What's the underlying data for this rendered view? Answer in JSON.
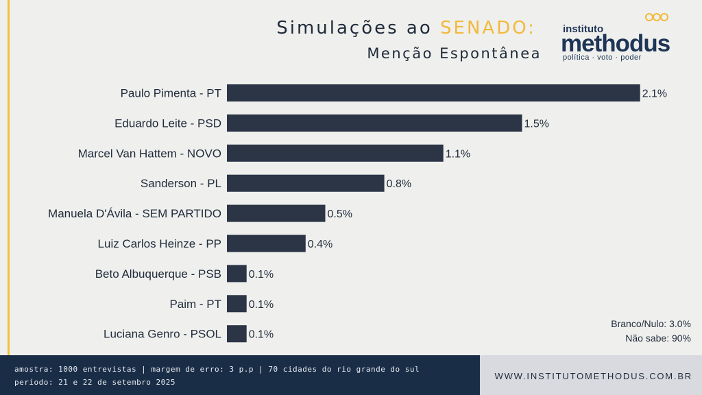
{
  "header": {
    "title_prefix": "Simulações ao ",
    "title_highlight": "SENADO:",
    "subtitle": "Menção Espontânea"
  },
  "logo": {
    "small": "instituto",
    "main": "methodus",
    "tagline": "política  ·  voto  ·  poder"
  },
  "notes": {
    "blank": "Branco/Nulo: 3.0%",
    "unknown": "Não sabe: 90%"
  },
  "footer": {
    "line1": "amostra: 1000 entrevistas | margem de erro: 3 p.p | 70 cidades do rio grande do sul",
    "line2": "período: 21 e 22 de setembro 2025",
    "website": "WWW.INSTITUTOMETHODUS.COM.BR"
  },
  "colors": {
    "bar": "#2b3546",
    "accent": "#f2c23c",
    "footer_dark": "#1a2d47"
  },
  "chart_data": {
    "type": "bar",
    "orientation": "horizontal",
    "categories": [
      "Paulo Pimenta - PT",
      "Eduardo Leite - PSD",
      "Marcel Van Hattem - NOVO",
      "Sanderson - PL",
      "Manuela D'Ávila - SEM PARTIDO",
      "Luiz Carlos Heinze - PP",
      "Beto Albuquerque - PSB",
      "Paim - PT",
      "Luciana Genro - PSOL"
    ],
    "values": [
      2.1,
      1.5,
      1.1,
      0.8,
      0.5,
      0.4,
      0.1,
      0.1,
      0.1
    ],
    "value_labels": [
      "2.1%",
      "1.5%",
      "1.1%",
      "0.8%",
      "0.5%",
      "0.4%",
      "0.1%",
      "0.1%",
      "0.1%"
    ],
    "grid": false,
    "legend": "none"
  }
}
